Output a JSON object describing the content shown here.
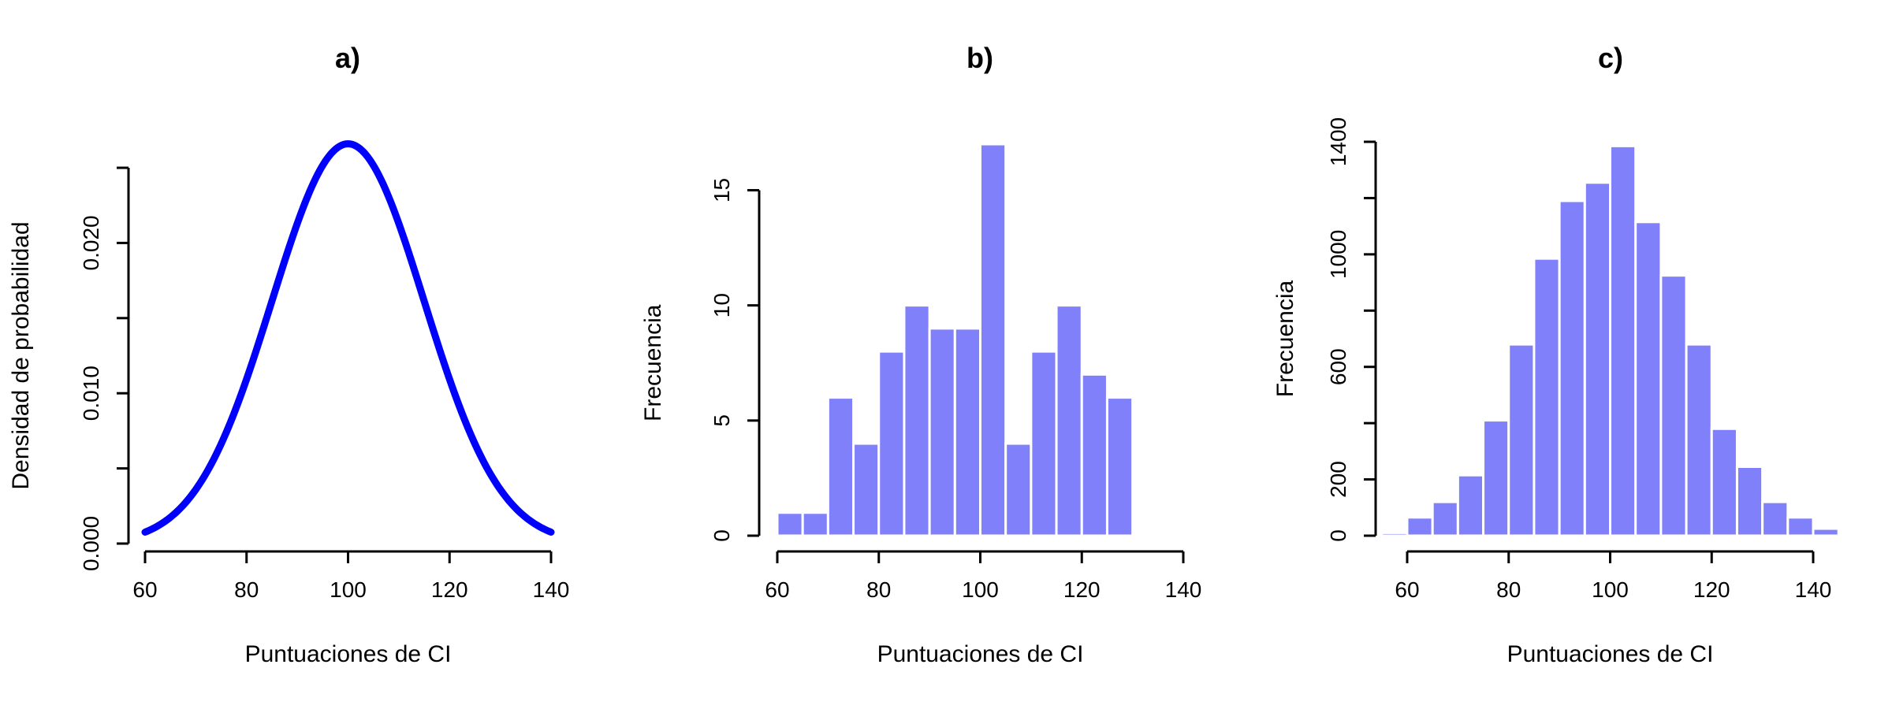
{
  "chart_data": [
    {
      "type": "line",
      "title": "a)",
      "xlabel": "Puntuaciones de CI",
      "ylabel": "Densidad de probabilidad",
      "xlim": [
        60,
        140
      ],
      "ylim": [
        0,
        0.025
      ],
      "xticks": [
        60,
        80,
        100,
        120,
        140
      ],
      "yticks": [
        0,
        0.005,
        0.01,
        0.015,
        0.02,
        0.025
      ],
      "ytick_labels": [
        "0.000",
        "",
        "0.010",
        "",
        "0.020",
        ""
      ],
      "distribution": {
        "name": "normal",
        "mean": 100,
        "sd": 15
      },
      "color": "#0000ff"
    },
    {
      "type": "bar",
      "title": "b)",
      "xlabel": "Puntuaciones de CI",
      "ylabel": "Frecuencia",
      "xlim": [
        60,
        140
      ],
      "ylim": [
        0,
        17
      ],
      "xticks": [
        60,
        80,
        100,
        120,
        140
      ],
      "yticks": [
        0,
        5,
        10,
        15
      ],
      "bin_edges": [
        60,
        65,
        70,
        75,
        80,
        85,
        90,
        95,
        100,
        105,
        110,
        115,
        120,
        125,
        130
      ],
      "values": [
        1,
        1,
        6,
        4,
        8,
        10,
        9,
        9,
        17,
        4,
        8,
        10,
        7,
        6
      ],
      "color": "#8080fa"
    },
    {
      "type": "bar",
      "title": "c)",
      "xlabel": "Puntuaciones de CI",
      "ylabel": "Frecuencia",
      "xlim": [
        55,
        145
      ],
      "ylim": [
        0,
        1400
      ],
      "xticks": [
        60,
        80,
        100,
        120,
        140
      ],
      "yticks": [
        0,
        200,
        400,
        600,
        800,
        1000,
        1200,
        1400
      ],
      "ytick_labels": [
        "0",
        "200",
        "",
        "600",
        "",
        "1000",
        "",
        "1400"
      ],
      "bin_edges": [
        55,
        60,
        65,
        70,
        75,
        80,
        85,
        90,
        95,
        100,
        105,
        110,
        115,
        120,
        125,
        130,
        135,
        140,
        145
      ],
      "values": [
        10,
        65,
        120,
        215,
        410,
        680,
        985,
        1190,
        1255,
        1385,
        1115,
        925,
        680,
        380,
        245,
        120,
        65,
        25
      ],
      "color": "#8080fa"
    }
  ]
}
